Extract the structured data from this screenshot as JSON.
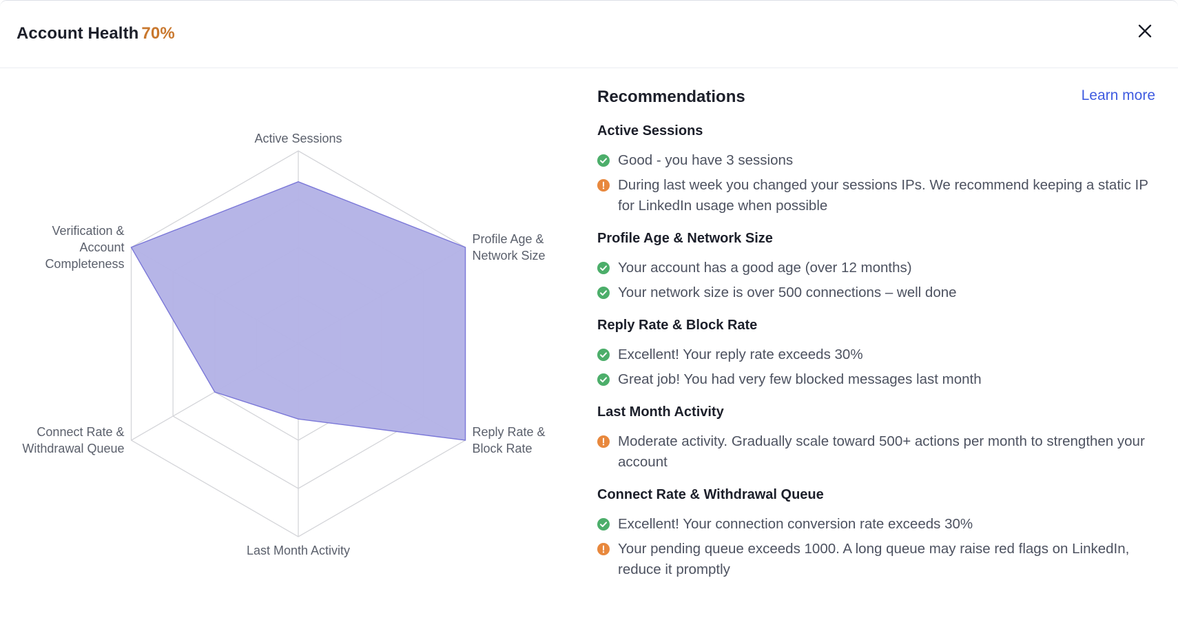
{
  "header": {
    "title": "Account Health",
    "score": "70%",
    "score_color": "#c9782e",
    "close_icon": "close-icon"
  },
  "chart_data": {
    "type": "radar",
    "axes": [
      "Active Sessions",
      "Profile Age & Network Size",
      "Reply Rate & Block Rate",
      "Last Month Activity",
      "Connect Rate & Withdrawal Queue",
      "Verification & Account Completeness"
    ],
    "axis_label_lines": [
      [
        "Active Sessions"
      ],
      [
        "Profile Age &",
        "Network Size"
      ],
      [
        "Reply Rate &",
        "Block Rate"
      ],
      [
        "Last Month Activity"
      ],
      [
        "Connect Rate &",
        "Withdrawal Queue"
      ],
      [
        "Verification &",
        "Account",
        "Completeness"
      ]
    ],
    "levels": 4,
    "range": [
      0,
      1
    ],
    "values": [
      0.84,
      1.0,
      1.0,
      0.39,
      0.5,
      1.0
    ],
    "fill_color": "#b3b2e6",
    "stroke_color": "#7b78d8",
    "grid_color": "#d4d5d9"
  },
  "recommendations": {
    "title": "Recommendations",
    "learn_more": "Learn more",
    "sections": [
      {
        "title": "Active Sessions",
        "items": [
          {
            "status": "ok",
            "text": "Good - you have 3 sessions"
          },
          {
            "status": "warn",
            "text": "During last week you changed your sessions IPs. We recommend keeping a static IP for LinkedIn usage when possible"
          }
        ]
      },
      {
        "title": "Profile Age & Network Size",
        "items": [
          {
            "status": "ok",
            "text": "Your account has a good age (over 12 months)"
          },
          {
            "status": "ok",
            "text": "Your network size is over 500 connections – well done"
          }
        ]
      },
      {
        "title": "Reply Rate & Block Rate",
        "items": [
          {
            "status": "ok",
            "text": "Excellent! Your reply rate exceeds 30%"
          },
          {
            "status": "ok",
            "text": "Great job! You had very few blocked messages last month"
          }
        ]
      },
      {
        "title": "Last Month Activity",
        "items": [
          {
            "status": "warn",
            "text": "Moderate activity. Gradually scale toward 500+ actions per month to strengthen your account"
          }
        ]
      },
      {
        "title": "Connect Rate & Withdrawal Queue",
        "items": [
          {
            "status": "ok",
            "text": "Excellent! Your connection conversion rate exceeds 30%"
          },
          {
            "status": "warn",
            "text": "Your pending queue exceeds 1000. A long queue may raise red flags on LinkedIn, reduce it promptly"
          }
        ]
      }
    ]
  }
}
